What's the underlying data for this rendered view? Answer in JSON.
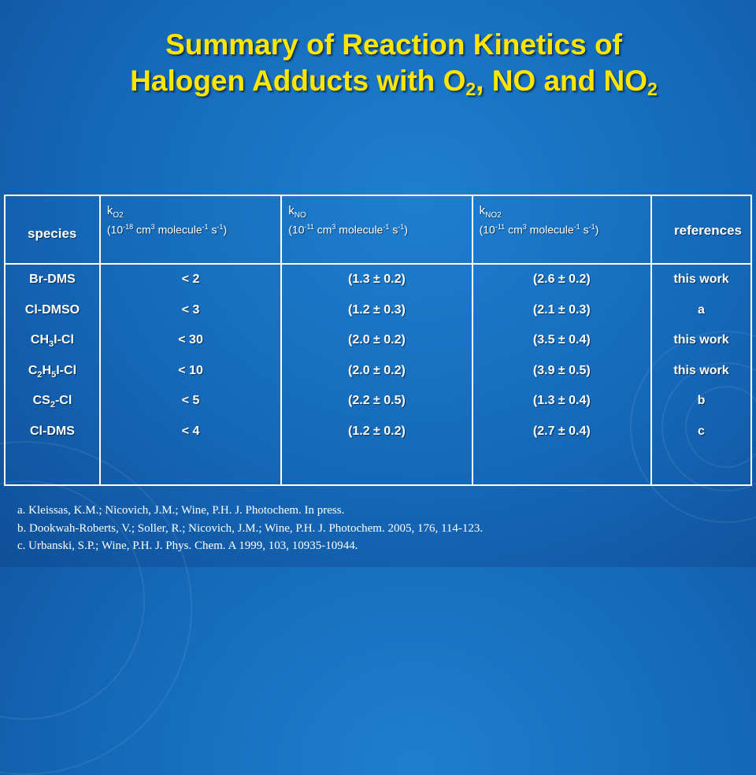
{
  "title": {
    "line1": "Summary of Reaction Kinetics of",
    "line2_pre": "Halogen Adducts with O",
    "line2_sub1": "2",
    "line2_mid": ", NO and NO",
    "line2_sub2": "2"
  },
  "table": {
    "headers": {
      "species": "species",
      "ko2": {
        "k": "k",
        "sub": "O2",
        "unit_pre": "(10",
        "exp": "-18",
        "unit_mid": " cm",
        "cm_exp": "3",
        "molecule": " molecule",
        "mol_exp": "-1",
        "s": " s",
        "s_exp": "-1",
        "close": ")"
      },
      "kno": {
        "k": "k",
        "sub": "NO",
        "unit_pre": "(10",
        "exp": "-11",
        "unit_mid": " cm",
        "cm_exp": "3",
        "molecule": " molecule",
        "mol_exp": "-1",
        "s": " s",
        "s_exp": "-1",
        "close": ")"
      },
      "kno2": {
        "k": "k",
        "sub": "NO2",
        "unit_pre": "(10",
        "exp": "-11",
        "unit_mid": " cm",
        "cm_exp": "3",
        "molecule": " molecule",
        "mol_exp": "-1",
        "s": " s",
        "s_exp": "-1",
        "close": ")"
      },
      "references": "references"
    },
    "species": [
      {
        "a": "Br-DMS"
      },
      {
        "a": "Cl-DMSO"
      },
      {
        "a": "CH",
        "s1": "3",
        "b": "I-Cl"
      },
      {
        "a": "C",
        "s1": "2",
        "b": "H",
        "s2": "5",
        "c": "I-Cl"
      },
      {
        "a": "CS",
        "s1": "2",
        "b": "-Cl"
      },
      {
        "a": "Cl-DMS"
      }
    ],
    "ko2": [
      "< 2",
      "< 3",
      "< 30",
      "< 10",
      "< 5",
      "< 4"
    ],
    "kno": [
      "(1.3 ± 0.2)",
      "(1.2 ± 0.3)",
      "(2.0 ± 0.2)",
      "(2.0 ± 0.2)",
      "(2.2 ± 0.5)",
      "(1.2 ± 0.2)"
    ],
    "kno2": [
      "(2.6 ± 0.2)",
      "(2.1 ± 0.3)",
      "(3.5 ± 0.4)",
      "(3.9 ± 0.5)",
      "(1.3 ± 0.4)",
      "(2.7 ± 0.4)"
    ],
    "refs": [
      "this work",
      "a",
      "this work",
      "this work",
      "b",
      "c"
    ]
  },
  "references": [
    "a. Kleissas, K.M.; Nicovich, J.M.; Wine, P.H. J. Photochem. In press.",
    "b. Dookwah-Roberts, V.; Soller, R.; Nicovich, J.M.; Wine, P.H. J. Photochem. 2005, 176, 114-123.",
    "c. Urbanski, S.P.; Wine, P.H.  J. Phys. Chem. A 1999, 103, 10935-10944."
  ],
  "colors": {
    "background": "#1568b8",
    "title": "#ffe600",
    "text": "#ffffff"
  }
}
